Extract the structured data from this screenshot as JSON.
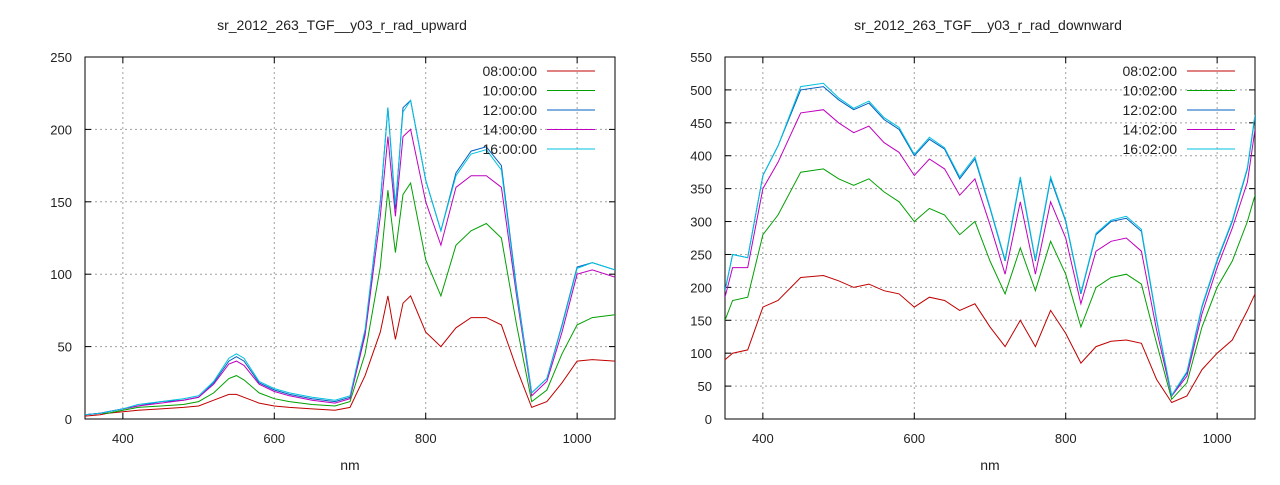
{
  "chart_data": [
    {
      "type": "line",
      "title": "sr_2012_263_TGF__y03_r_rad_upward",
      "xlabel": "nm",
      "ylabel": "",
      "xlim": [
        350,
        1050
      ],
      "ylim": [
        0,
        250
      ],
      "xticks": [
        400,
        600,
        800,
        1000
      ],
      "yticks": [
        0,
        50,
        100,
        150,
        200,
        250
      ],
      "grid": true,
      "legend": "top-right",
      "x": [
        350,
        370,
        380,
        400,
        420,
        450,
        480,
        500,
        520,
        540,
        550,
        560,
        580,
        600,
        620,
        650,
        680,
        700,
        720,
        740,
        750,
        760,
        770,
        780,
        800,
        820,
        840,
        860,
        880,
        900,
        920,
        940,
        960,
        980,
        1000,
        1020,
        1050
      ],
      "series": [
        {
          "name": "08:00:00",
          "color": "#c00000",
          "values": [
            2,
            3,
            4,
            5,
            6,
            7,
            8,
            9,
            13,
            17,
            17,
            15,
            11,
            9,
            8,
            7,
            6,
            8,
            30,
            60,
            85,
            55,
            80,
            85,
            60,
            50,
            63,
            70,
            70,
            65,
            35,
            8,
            12,
            25,
            40,
            41,
            40
          ]
        },
        {
          "name": "10:00:00",
          "color": "#00a000",
          "values": [
            3,
            4,
            4,
            6,
            8,
            9,
            10,
            12,
            18,
            28,
            30,
            27,
            18,
            14,
            12,
            10,
            9,
            12,
            45,
            105,
            158,
            115,
            155,
            163,
            110,
            85,
            120,
            130,
            135,
            125,
            65,
            12,
            20,
            45,
            65,
            70,
            72
          ]
        },
        {
          "name": "12:00:00",
          "color": "#0060c0",
          "values": [
            3,
            4,
            5,
            7,
            9,
            12,
            13,
            15,
            25,
            40,
            43,
            40,
            25,
            20,
            17,
            14,
            12,
            15,
            60,
            150,
            215,
            145,
            215,
            220,
            165,
            130,
            170,
            185,
            188,
            175,
            90,
            18,
            28,
            65,
            105,
            108,
            103
          ]
        },
        {
          "name": "14:00:00",
          "color": "#c000c0",
          "values": [
            3,
            4,
            5,
            7,
            9,
            11,
            13,
            15,
            24,
            38,
            40,
            37,
            24,
            19,
            16,
            13,
            11,
            14,
            58,
            140,
            195,
            140,
            195,
            200,
            150,
            120,
            160,
            168,
            168,
            160,
            85,
            16,
            26,
            60,
            100,
            103,
            98
          ]
        },
        {
          "name": "16:00:00",
          "color": "#00c0e0",
          "values": [
            3,
            4,
            5,
            7,
            10,
            12,
            14,
            16,
            26,
            42,
            45,
            42,
            26,
            21,
            18,
            15,
            13,
            16,
            62,
            150,
            215,
            148,
            212,
            220,
            165,
            130,
            168,
            183,
            186,
            172,
            88,
            18,
            28,
            64,
            104,
            108,
            103
          ]
        }
      ]
    },
    {
      "type": "line",
      "title": "sr_2012_263_TGF__y03_r_rad_downward",
      "xlabel": "nm",
      "ylabel": "",
      "xlim": [
        350,
        1050
      ],
      "ylim": [
        0,
        550
      ],
      "xticks": [
        400,
        600,
        800,
        1000
      ],
      "yticks": [
        0,
        50,
        100,
        150,
        200,
        250,
        300,
        350,
        400,
        450,
        500,
        550
      ],
      "grid": true,
      "legend": "top-right",
      "x": [
        350,
        360,
        380,
        400,
        420,
        450,
        480,
        500,
        520,
        540,
        560,
        580,
        600,
        620,
        640,
        660,
        680,
        700,
        720,
        740,
        760,
        780,
        800,
        820,
        840,
        860,
        880,
        900,
        920,
        940,
        960,
        980,
        1000,
        1020,
        1040,
        1050
      ],
      "series": [
        {
          "name": "08:02:00",
          "color": "#c00000",
          "values": [
            90,
            100,
            105,
            170,
            180,
            215,
            218,
            210,
            200,
            205,
            195,
            190,
            170,
            185,
            180,
            165,
            175,
            140,
            110,
            150,
            110,
            165,
            130,
            85,
            110,
            118,
            120,
            115,
            60,
            25,
            35,
            75,
            100,
            120,
            165,
            190
          ]
        },
        {
          "name": "10:02:00",
          "color": "#00a000",
          "values": [
            150,
            180,
            185,
            280,
            310,
            375,
            380,
            365,
            355,
            365,
            345,
            330,
            300,
            320,
            310,
            280,
            300,
            240,
            190,
            260,
            195,
            270,
            220,
            140,
            200,
            215,
            220,
            205,
            115,
            30,
            55,
            140,
            200,
            240,
            300,
            340
          ]
        },
        {
          "name": "12:02:00",
          "color": "#0060c0",
          "values": [
            195,
            250,
            245,
            370,
            415,
            500,
            505,
            485,
            470,
            480,
            455,
            440,
            400,
            425,
            410,
            365,
            395,
            320,
            240,
            365,
            240,
            365,
            300,
            190,
            280,
            300,
            305,
            285,
            150,
            35,
            70,
            170,
            240,
            300,
            380,
            460
          ]
        },
        {
          "name": "14:02:00",
          "color": "#c000c0",
          "values": [
            185,
            230,
            230,
            350,
            390,
            465,
            470,
            450,
            435,
            445,
            420,
            405,
            370,
            395,
            380,
            340,
            365,
            295,
            220,
            330,
            220,
            330,
            275,
            175,
            255,
            270,
            275,
            255,
            135,
            35,
            65,
            160,
            230,
            290,
            360,
            440
          ]
        },
        {
          "name": "16:02:00",
          "color": "#00c0e0",
          "values": [
            195,
            250,
            245,
            370,
            415,
            505,
            510,
            488,
            472,
            483,
            458,
            443,
            402,
            428,
            412,
            368,
            398,
            322,
            242,
            368,
            242,
            368,
            302,
            192,
            282,
            302,
            308,
            288,
            152,
            36,
            72,
            172,
            242,
            302,
            382,
            462
          ]
        }
      ]
    }
  ]
}
